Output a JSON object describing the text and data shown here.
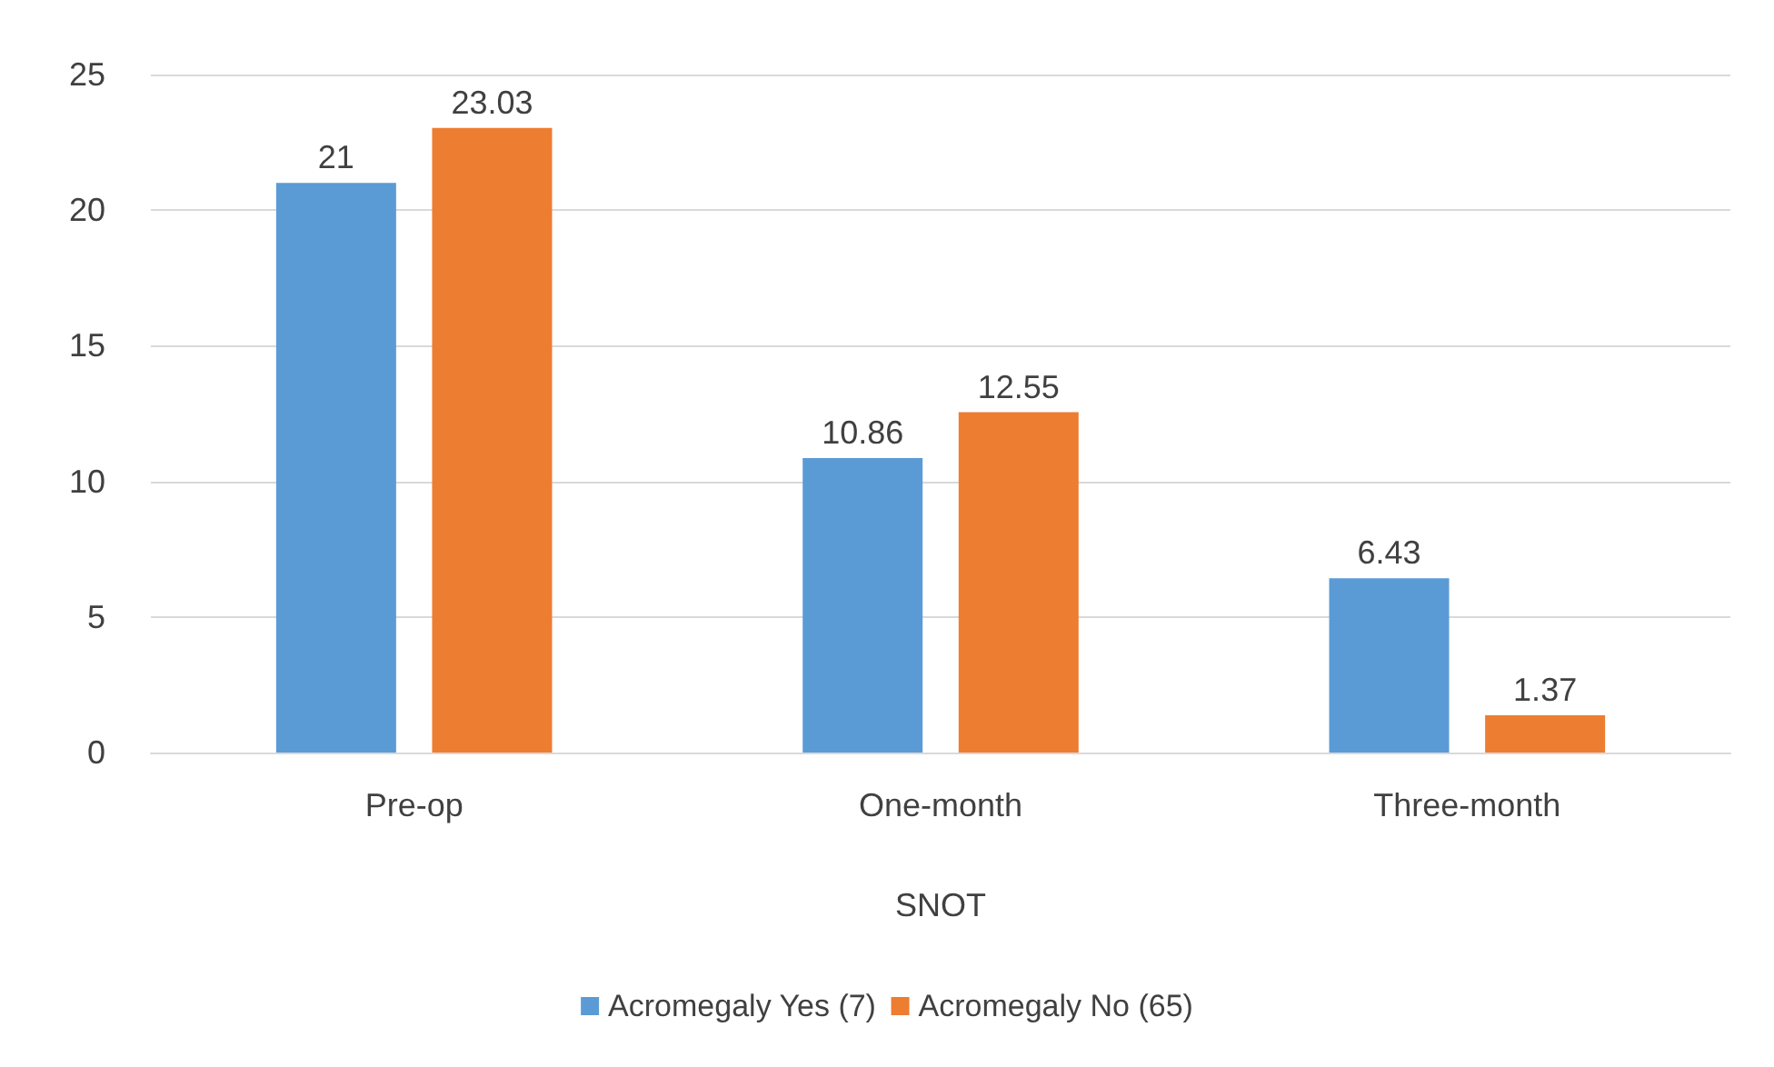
{
  "chart_data": {
    "type": "bar",
    "xlabel": "SNOT",
    "categories": [
      "Pre-op",
      "One-month",
      "Three-month"
    ],
    "series": [
      {
        "name": "Acromegaly Yes (7)",
        "color": "#5b9bd5",
        "values": [
          21,
          10.86,
          6.43
        ]
      },
      {
        "name": "Acromegaly No (65)",
        "color": "#ed7d31",
        "values": [
          23.03,
          12.55,
          1.37
        ]
      }
    ],
    "ylim": [
      0,
      25
    ],
    "yticks": [
      0,
      5,
      10,
      15,
      20,
      25
    ],
    "grid": "y",
    "legend": "bottom",
    "data_labels": true
  }
}
